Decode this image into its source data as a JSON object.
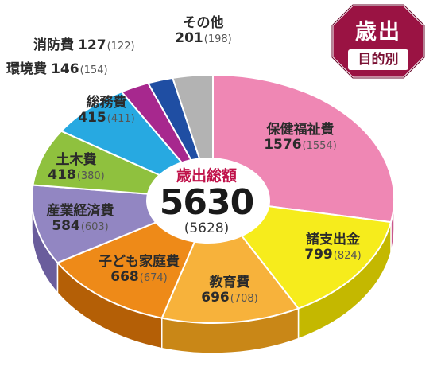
{
  "badge": {
    "title": "歳出",
    "subtitle": "目的別"
  },
  "chart_data": {
    "type": "pie",
    "title": "歳出",
    "subtitle": "目的別",
    "center_label": "歳出総額",
    "total": 5630,
    "total_previous": "(5628)",
    "categories": [
      "保健福祉費",
      "諸支出金",
      "教育費",
      "子ども家庭費",
      "産業経済費",
      "土木費",
      "総務費",
      "環境費",
      "消防費",
      "その他"
    ],
    "values": [
      1576,
      799,
      696,
      668,
      584,
      418,
      415,
      146,
      127,
      201
    ],
    "previous_values": [
      1554,
      824,
      708,
      674,
      603,
      380,
      411,
      154,
      122,
      198
    ],
    "slices": [
      {
        "name": "保健福祉費",
        "value": "1576",
        "prev": "(1554)",
        "color": "#ef87b4",
        "side": "#c9588c"
      },
      {
        "name": "諸支出金",
        "value": "799",
        "prev": "(824)",
        "color": "#f6ec1c",
        "side": "#c4b800"
      },
      {
        "name": "教育費",
        "value": "696",
        "prev": "(708)",
        "color": "#f7b23b",
        "side": "#c98717"
      },
      {
        "name": "子ども家庭費",
        "value": "668",
        "prev": "(674)",
        "color": "#ee8a18",
        "side": "#b45f06"
      },
      {
        "name": "産業経済費",
        "value": "584",
        "prev": "(603)",
        "color": "#9286c2",
        "side": "#6a5d9c"
      },
      {
        "name": "土木費",
        "value": "418",
        "prev": "(380)",
        "color": "#8fc13e",
        "side": "#5f8d1c"
      },
      {
        "name": "総務費",
        "value": "415",
        "prev": "(411)",
        "color": "#27a9e1",
        "side": "#137cad"
      },
      {
        "name": "環境費",
        "value": "146",
        "prev": "(154)",
        "color": "#a7288e",
        "side": "#741462"
      },
      {
        "name": "消防費",
        "value": "127",
        "prev": "(122)",
        "color": "#1f4ea3",
        "side": "#11306b"
      },
      {
        "name": "その他",
        "value": "201",
        "prev": "(198)",
        "color": "#b3b3b3",
        "side": "#888888"
      }
    ]
  }
}
